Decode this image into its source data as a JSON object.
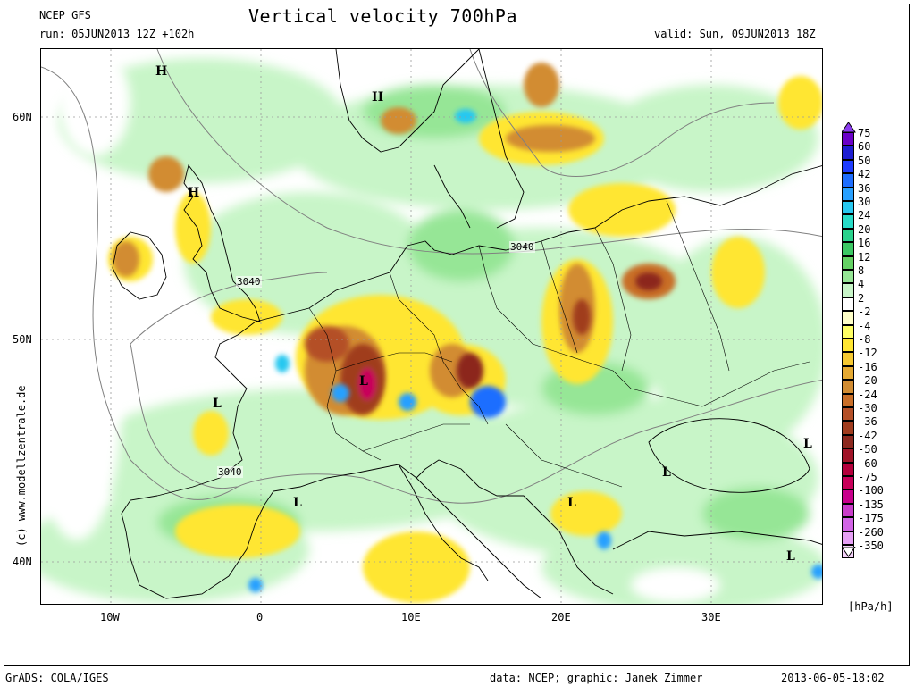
{
  "header": {
    "model": "NCEP GFS",
    "run": "run: 05JUN2013 12Z +102h",
    "title": "Vertical velocity 700hPa",
    "valid": "valid: Sun, 09JUN2013 18Z"
  },
  "axes": {
    "lat_labels": [
      "60N",
      "50N",
      "40N"
    ],
    "lon_labels": [
      "10W",
      "0",
      "10E",
      "20E",
      "30E"
    ]
  },
  "side_credit": "(c) www.modellzentrale.de",
  "pressure_labels": [
    "3040",
    "3040",
    "3040"
  ],
  "centers": {
    "H": "H",
    "L": "L"
  },
  "legend": {
    "unit": "[hPa/h]",
    "entries": [
      {
        "label": "75",
        "color": "#6a00c8"
      },
      {
        "label": "60",
        "color": "#1e1ed2"
      },
      {
        "label": "50",
        "color": "#1e3cff"
      },
      {
        "label": "42",
        "color": "#1e6eff"
      },
      {
        "label": "36",
        "color": "#28a0ff"
      },
      {
        "label": "30",
        "color": "#28c8f0"
      },
      {
        "label": "24",
        "color": "#28dcc8"
      },
      {
        "label": "20",
        "color": "#2ad28c"
      },
      {
        "label": "16",
        "color": "#3cc864"
      },
      {
        "label": "12",
        "color": "#64d264"
      },
      {
        "label": "8",
        "color": "#96e696"
      },
      {
        "label": "4",
        "color": "#c8f5c8"
      },
      {
        "label": "2",
        "color": "#ffffff"
      },
      {
        "label": "-2",
        "color": "#ffffc8"
      },
      {
        "label": "-4",
        "color": "#ffff64"
      },
      {
        "label": "-8",
        "color": "#ffe632"
      },
      {
        "label": "-12",
        "color": "#f5c832"
      },
      {
        "label": "-16",
        "color": "#e6aa32"
      },
      {
        "label": "-20",
        "color": "#d28c32"
      },
      {
        "label": "-24",
        "color": "#c86e28"
      },
      {
        "label": "-30",
        "color": "#b45028"
      },
      {
        "label": "-36",
        "color": "#a03c1e"
      },
      {
        "label": "-42",
        "color": "#8c281e"
      },
      {
        "label": "-50",
        "color": "#a01428"
      },
      {
        "label": "-60",
        "color": "#b4003c"
      },
      {
        "label": "-75",
        "color": "#c8005a"
      },
      {
        "label": "-100",
        "color": "#c8008c"
      },
      {
        "label": "-135",
        "color": "#c83cc8"
      },
      {
        "label": "-175",
        "color": "#d264e6"
      },
      {
        "label": "-260",
        "color": "#e6a0f5"
      },
      {
        "label": "-350",
        "color": "#f5d2fa"
      }
    ],
    "top_arrow_color": "#8c3cf0"
  },
  "footer": {
    "software": "GrADS: COLA/IGES",
    "credit": "data: NCEP; graphic: Janek Zimmer",
    "timestamp": "2013-06-05-18:02"
  }
}
